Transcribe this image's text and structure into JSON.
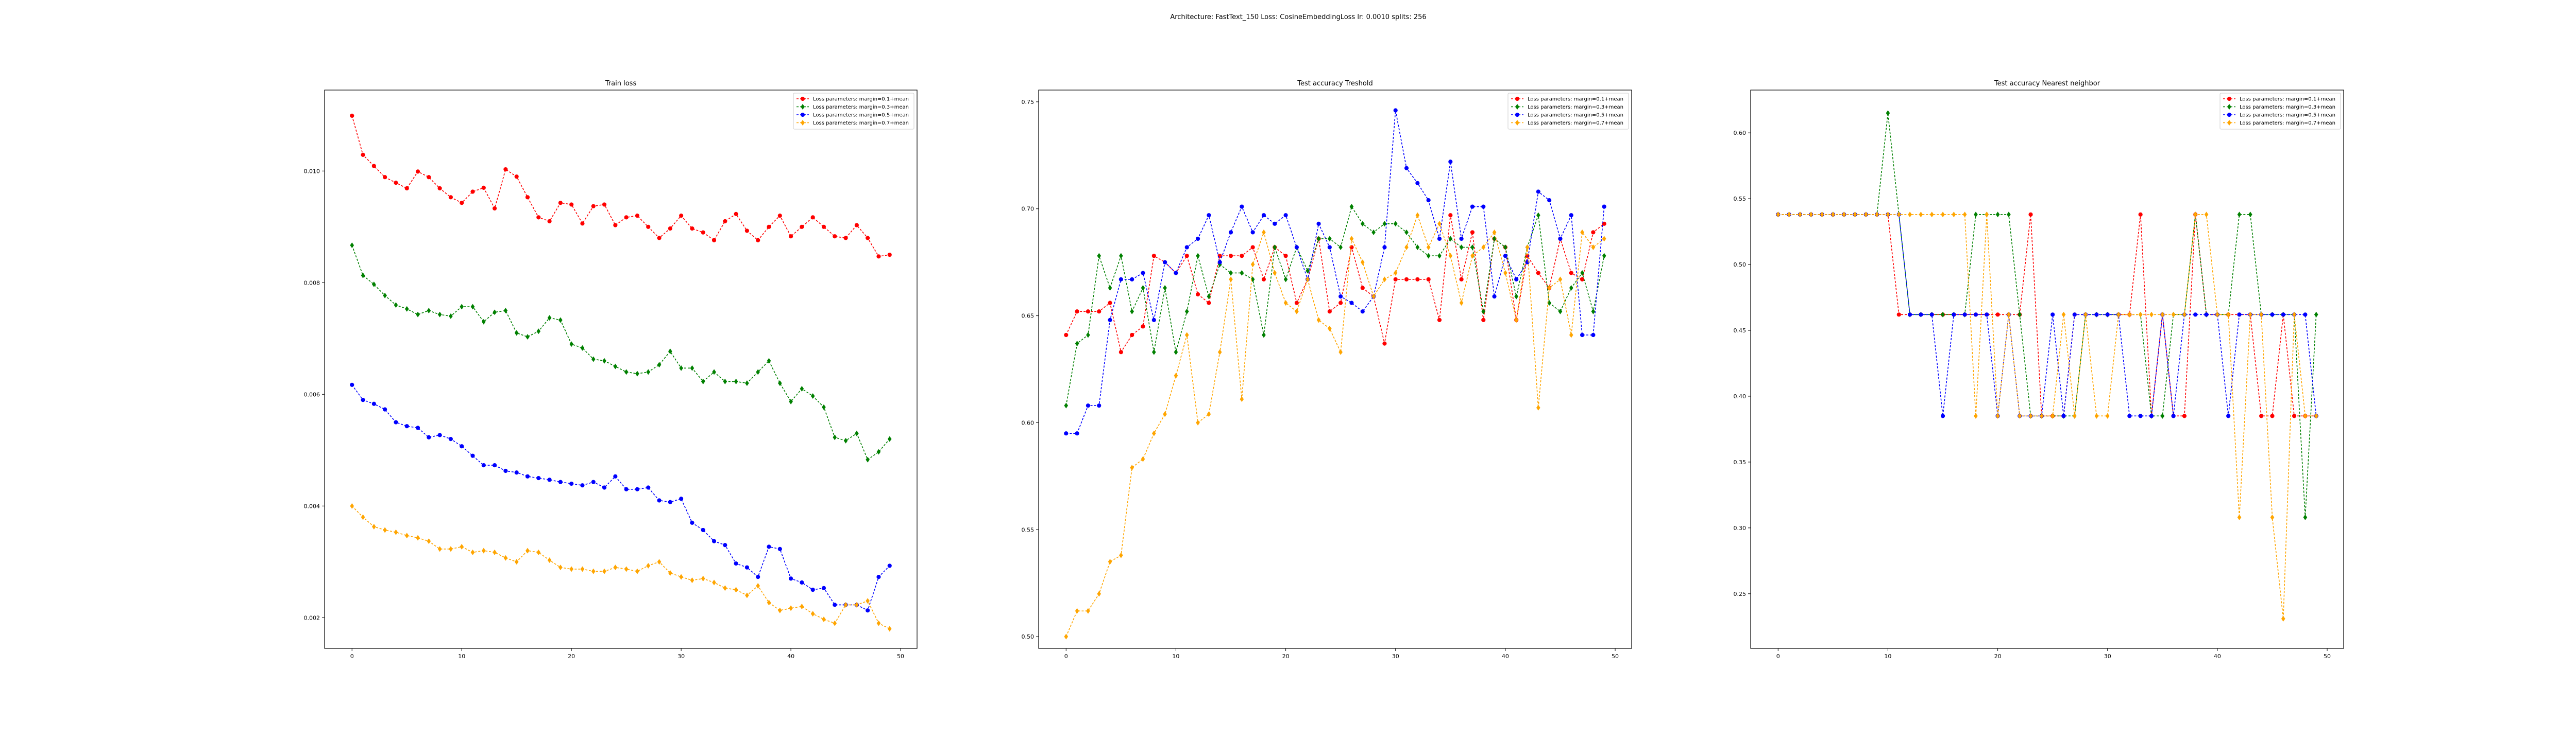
{
  "figure": {
    "suptitle": "Architecture: FastText_150 Loss: CosineEmbeddingLoss lr: 0.0010 splits: 256"
  },
  "chart_data": [
    {
      "type": "line",
      "title": "Train loss",
      "xlabel": "",
      "ylabel": "",
      "xlim": [
        -2.5,
        51.5
      ],
      "ylim": [
        0.00145,
        0.01145
      ],
      "xticks": [
        0,
        10,
        20,
        30,
        40,
        50
      ],
      "yticks": [
        0.002,
        0.004,
        0.006,
        0.008,
        0.01
      ],
      "ytick_labels": [
        "0.002",
        "0.004",
        "0.006",
        "0.008",
        "0.010"
      ],
      "legend_position": "top-right",
      "x": [
        0,
        1,
        2,
        3,
        4,
        5,
        6,
        7,
        8,
        9,
        10,
        11,
        12,
        13,
        14,
        15,
        16,
        17,
        18,
        19,
        20,
        21,
        22,
        23,
        24,
        25,
        26,
        27,
        28,
        29,
        30,
        31,
        32,
        33,
        34,
        35,
        36,
        37,
        38,
        39,
        40,
        41,
        42,
        43,
        44,
        45,
        46,
        47,
        48,
        49
      ],
      "series": [
        {
          "name": "Loss parameters: margin=0.1+mean",
          "color": "#ff0000",
          "values": [
            0.01099,
            0.01029,
            0.01009,
            0.00989,
            0.00979,
            0.00969,
            0.00999,
            0.00989,
            0.00969,
            0.00953,
            0.00943,
            0.00963,
            0.0097,
            0.00933,
            0.01003,
            0.0099,
            0.00953,
            0.00917,
            0.0091,
            0.00943,
            0.0094,
            0.00906,
            0.00937,
            0.0094,
            0.00903,
            0.00917,
            0.0092,
            0.009,
            0.0088,
            0.00897,
            0.0092,
            0.00897,
            0.0089,
            0.00876,
            0.0091,
            0.00923,
            0.00893,
            0.00876,
            0.009,
            0.0092,
            0.00883,
            0.009,
            0.00917,
            0.009,
            0.00883,
            0.0088,
            0.00903,
            0.0088,
            0.00847,
            0.0085
          ]
        },
        {
          "name": "Loss parameters: margin=0.3+mean",
          "color": "#008000",
          "values": [
            0.00867,
            0.00813,
            0.00797,
            0.00777,
            0.0076,
            0.00753,
            0.00743,
            0.0075,
            0.00743,
            0.0074,
            0.00757,
            0.00757,
            0.0073,
            0.00747,
            0.0075,
            0.0071,
            0.00703,
            0.00713,
            0.00737,
            0.00733,
            0.0069,
            0.00683,
            0.00663,
            0.0066,
            0.0065,
            0.0064,
            0.00637,
            0.0064,
            0.00653,
            0.00677,
            0.00647,
            0.00647,
            0.00623,
            0.0064,
            0.00623,
            0.00623,
            0.0062,
            0.0064,
            0.0066,
            0.0062,
            0.00587,
            0.0061,
            0.00597,
            0.00577,
            0.00523,
            0.00517,
            0.0053,
            0.00483,
            0.00497,
            0.0052
          ]
        },
        {
          "name": "Loss parameters: margin=0.5+mean",
          "color": "#0000ff",
          "values": [
            0.00617,
            0.0059,
            0.00583,
            0.00573,
            0.0055,
            0.00543,
            0.0054,
            0.00523,
            0.00527,
            0.0052,
            0.00507,
            0.0049,
            0.00473,
            0.00473,
            0.00463,
            0.0046,
            0.00453,
            0.0045,
            0.00447,
            0.00443,
            0.0044,
            0.00437,
            0.00443,
            0.00433,
            0.00453,
            0.0043,
            0.0043,
            0.00433,
            0.0041,
            0.00407,
            0.00413,
            0.0037,
            0.00357,
            0.00337,
            0.0033,
            0.00297,
            0.0029,
            0.00273,
            0.00327,
            0.00323,
            0.0027,
            0.00263,
            0.0025,
            0.00253,
            0.00223,
            0.00223,
            0.00223,
            0.00213,
            0.00273,
            0.00293
          ]
        },
        {
          "name": "Loss parameters: margin=0.7+mean",
          "color": "#ffa500",
          "values": [
            0.004,
            0.0038,
            0.00363,
            0.00357,
            0.00353,
            0.00347,
            0.00343,
            0.00337,
            0.00323,
            0.00323,
            0.00327,
            0.00317,
            0.0032,
            0.00317,
            0.00307,
            0.003,
            0.0032,
            0.00317,
            0.00303,
            0.0029,
            0.00287,
            0.00287,
            0.00283,
            0.00283,
            0.0029,
            0.00287,
            0.00283,
            0.00293,
            0.003,
            0.0028,
            0.00273,
            0.00267,
            0.0027,
            0.00263,
            0.00253,
            0.0025,
            0.0024,
            0.00257,
            0.00227,
            0.00213,
            0.00217,
            0.0022,
            0.00207,
            0.00197,
            0.0019,
            0.00223,
            0.00223,
            0.0023,
            0.0019,
            0.0018
          ]
        }
      ]
    },
    {
      "type": "line",
      "title": "Test accuracy Treshold",
      "xlabel": "",
      "ylabel": "",
      "xlim": [
        -2.5,
        51.5
      ],
      "ylim": [
        0.4945,
        0.7555
      ],
      "xticks": [
        0,
        10,
        20,
        30,
        40,
        50
      ],
      "yticks": [
        0.5,
        0.55,
        0.6,
        0.65,
        0.7,
        0.75
      ],
      "ytick_labels": [
        "0.50",
        "0.55",
        "0.60",
        "0.65",
        "0.70",
        "0.75"
      ],
      "legend_position": "top-right",
      "x": [
        0,
        1,
        2,
        3,
        4,
        5,
        6,
        7,
        8,
        9,
        10,
        11,
        12,
        13,
        14,
        15,
        16,
        17,
        18,
        19,
        20,
        21,
        22,
        23,
        24,
        25,
        26,
        27,
        28,
        29,
        30,
        31,
        32,
        33,
        34,
        35,
        36,
        37,
        38,
        39,
        40,
        41,
        42,
        43,
        44,
        45,
        46,
        47,
        48,
        49
      ],
      "series": [
        {
          "name": "Loss parameters: margin=0.1+mean",
          "color": "#ff0000",
          "values": [
            0.641,
            0.652,
            0.652,
            0.652,
            0.656,
            0.633,
            0.641,
            0.645,
            0.678,
            0.675,
            0.67,
            0.678,
            0.66,
            0.656,
            0.678,
            0.678,
            0.678,
            0.682,
            0.667,
            0.682,
            0.678,
            0.656,
            0.667,
            0.686,
            0.652,
            0.656,
            0.682,
            0.663,
            0.659,
            0.637,
            0.667,
            0.667,
            0.667,
            0.667,
            0.648,
            0.697,
            0.667,
            0.689,
            0.648,
            0.686,
            0.682,
            0.648,
            0.678,
            0.67,
            0.663,
            0.686,
            0.67,
            0.667,
            0.689,
            0.693
          ]
        },
        {
          "name": "Loss parameters: margin=0.3+mean",
          "color": "#008000",
          "values": [
            0.608,
            0.637,
            0.641,
            0.678,
            0.663,
            0.678,
            0.652,
            0.663,
            0.633,
            0.663,
            0.633,
            0.652,
            0.678,
            0.659,
            0.674,
            0.67,
            0.67,
            0.667,
            0.641,
            0.682,
            0.667,
            0.682,
            0.671,
            0.686,
            0.686,
            0.682,
            0.701,
            0.693,
            0.689,
            0.693,
            0.693,
            0.689,
            0.682,
            0.678,
            0.678,
            0.686,
            0.682,
            0.682,
            0.652,
            0.686,
            0.682,
            0.659,
            0.682,
            0.697,
            0.656,
            0.652,
            0.663,
            0.67,
            0.652,
            0.678
          ]
        },
        {
          "name": "Loss parameters: margin=0.5+mean",
          "color": "#0000ff",
          "values": [
            0.595,
            0.595,
            0.608,
            0.608,
            0.648,
            0.667,
            0.667,
            0.67,
            0.648,
            0.675,
            0.67,
            0.682,
            0.686,
            0.697,
            0.675,
            0.689,
            0.701,
            0.689,
            0.697,
            0.693,
            0.697,
            0.682,
            0.667,
            0.693,
            0.682,
            0.659,
            0.656,
            0.652,
            0.659,
            0.682,
            0.746,
            0.719,
            0.712,
            0.704,
            0.686,
            0.722,
            0.686,
            0.701,
            0.701,
            0.659,
            0.678,
            0.667,
            0.675,
            0.708,
            0.704,
            0.686,
            0.697,
            0.641,
            0.641,
            0.701
          ]
        },
        {
          "name": "Loss parameters: margin=0.7+mean",
          "color": "#ffa500",
          "values": [
            0.5,
            0.512,
            0.512,
            0.52,
            0.535,
            0.538,
            0.579,
            0.583,
            0.595,
            0.604,
            0.622,
            0.641,
            0.6,
            0.604,
            0.633,
            0.667,
            0.611,
            0.674,
            0.689,
            0.67,
            0.656,
            0.652,
            0.667,
            0.648,
            0.644,
            0.633,
            0.686,
            0.675,
            0.659,
            0.667,
            0.67,
            0.682,
            0.697,
            0.682,
            0.693,
            0.678,
            0.656,
            0.678,
            0.682,
            0.689,
            0.67,
            0.648,
            0.682,
            0.607,
            0.663,
            0.667,
            0.641,
            0.689,
            0.682,
            0.686
          ]
        }
      ]
    },
    {
      "type": "line",
      "title": "Test accuracy Nearest neighbor",
      "xlabel": "",
      "ylabel": "",
      "xlim": [
        -2.5,
        51.5
      ],
      "ylim": [
        0.2085,
        0.6325
      ],
      "xticks": [
        0,
        10,
        20,
        30,
        40,
        50
      ],
      "yticks": [
        0.25,
        0.3,
        0.35,
        0.4,
        0.45,
        0.5,
        0.55,
        0.6
      ],
      "ytick_labels": [
        "0.25",
        "0.30",
        "0.35",
        "0.40",
        "0.45",
        "0.50",
        "0.55",
        "0.60"
      ],
      "legend_position": "top-right",
      "x": [
        0,
        1,
        2,
        3,
        4,
        5,
        6,
        7,
        8,
        9,
        10,
        11,
        12,
        13,
        14,
        15,
        16,
        17,
        18,
        19,
        20,
        21,
        22,
        23,
        24,
        25,
        26,
        27,
        28,
        29,
        30,
        31,
        32,
        33,
        34,
        35,
        36,
        37,
        38,
        39,
        40,
        41,
        42,
        43,
        44,
        45,
        46,
        47,
        48,
        49
      ],
      "series": [
        {
          "name": "Loss parameters: margin=0.1+mean",
          "color": "#ff0000",
          "values": [
            0.538,
            0.538,
            0.538,
            0.538,
            0.538,
            0.538,
            0.538,
            0.538,
            0.538,
            0.538,
            0.538,
            0.462,
            0.462,
            0.462,
            0.462,
            0.462,
            0.462,
            0.462,
            0.462,
            0.462,
            0.462,
            0.462,
            0.462,
            0.538,
            0.385,
            0.385,
            0.385,
            0.462,
            0.462,
            0.462,
            0.462,
            0.462,
            0.462,
            0.538,
            0.385,
            0.462,
            0.385,
            0.385,
            0.538,
            0.462,
            0.462,
            0.462,
            0.462,
            0.462,
            0.385,
            0.385,
            0.462,
            0.385,
            0.385,
            0.385
          ]
        },
        {
          "name": "Loss parameters: margin=0.3+mean",
          "color": "#008000",
          "values": [
            0.538,
            0.538,
            0.538,
            0.538,
            0.538,
            0.538,
            0.538,
            0.538,
            0.538,
            0.538,
            0.615,
            0.538,
            0.462,
            0.462,
            0.462,
            0.462,
            0.462,
            0.462,
            0.538,
            0.538,
            0.538,
            0.538,
            0.462,
            0.385,
            0.385,
            0.385,
            0.385,
            0.385,
            0.462,
            0.462,
            0.462,
            0.462,
            0.462,
            0.462,
            0.385,
            0.385,
            0.462,
            0.462,
            0.538,
            0.462,
            0.462,
            0.462,
            0.538,
            0.538,
            0.462,
            0.462,
            0.462,
            0.462,
            0.308,
            0.462
          ]
        },
        {
          "name": "Loss parameters: margin=0.5+mean",
          "color": "#0000ff",
          "values": [
            0.538,
            0.538,
            0.538,
            0.538,
            0.538,
            0.538,
            0.538,
            0.538,
            0.538,
            0.538,
            0.538,
            0.538,
            0.462,
            0.462,
            0.462,
            0.385,
            0.462,
            0.462,
            0.462,
            0.462,
            0.385,
            0.462,
            0.385,
            0.385,
            0.385,
            0.462,
            0.385,
            0.462,
            0.462,
            0.462,
            0.462,
            0.462,
            0.385,
            0.385,
            0.385,
            0.462,
            0.385,
            0.462,
            0.462,
            0.462,
            0.462,
            0.385,
            0.462,
            0.462,
            0.462,
            0.462,
            0.462,
            0.462,
            0.462,
            0.385
          ]
        },
        {
          "name": "Loss parameters: margin=0.7+mean",
          "color": "#ffa500",
          "values": [
            0.538,
            0.538,
            0.538,
            0.538,
            0.538,
            0.538,
            0.538,
            0.538,
            0.538,
            0.538,
            0.538,
            0.538,
            0.538,
            0.538,
            0.538,
            0.538,
            0.538,
            0.538,
            0.385,
            0.538,
            0.385,
            0.462,
            0.385,
            0.385,
            0.385,
            0.385,
            0.462,
            0.385,
            0.462,
            0.385,
            0.385,
            0.462,
            0.462,
            0.462,
            0.462,
            0.462,
            0.462,
            0.462,
            0.538,
            0.538,
            0.462,
            0.462,
            0.308,
            0.462,
            0.462,
            0.308,
            0.231,
            0.462,
            0.385,
            0.385
          ]
        }
      ]
    }
  ]
}
